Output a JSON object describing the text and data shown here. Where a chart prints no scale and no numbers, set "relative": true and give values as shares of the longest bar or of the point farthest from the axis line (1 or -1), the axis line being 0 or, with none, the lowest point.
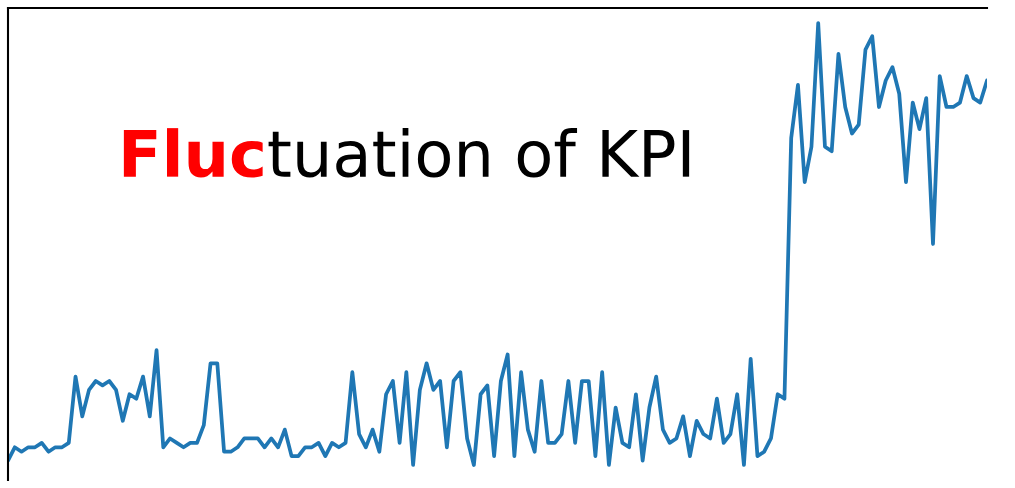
{
  "chart_data": {
    "type": "line",
    "title": "Fluctuation of KPI",
    "relative": true,
    "color": "#1f77b4",
    "categories": [
      null,
      null,
      null,
      null,
      null,
      null,
      null,
      null,
      null,
      null,
      null,
      null,
      null,
      null,
      null,
      null,
      null,
      null,
      null,
      null,
      null,
      null,
      null,
      null,
      null,
      null,
      null,
      null,
      null,
      null,
      null,
      null,
      null,
      null,
      null,
      null,
      null,
      null,
      null,
      null,
      null,
      null,
      null,
      null,
      null,
      null,
      null,
      null,
      null,
      null,
      null,
      null,
      null,
      null,
      null,
      null,
      null,
      null,
      null,
      null,
      null,
      null,
      null,
      null,
      null,
      null,
      null,
      null,
      null,
      null,
      null,
      null,
      null,
      null,
      null,
      null,
      null,
      null,
      null,
      null,
      null,
      null,
      null,
      null,
      null,
      null,
      null,
      null,
      null,
      null,
      null,
      null,
      null,
      null,
      null,
      null,
      null,
      null,
      null,
      null,
      null,
      null,
      null,
      null,
      null,
      null,
      null,
      null,
      null,
      null,
      null,
      null,
      null,
      null,
      null,
      null,
      null,
      null,
      null,
      null,
      null,
      null,
      null,
      null,
      null,
      null,
      null,
      null,
      null,
      null,
      null,
      null,
      null,
      null,
      null,
      null,
      null,
      null,
      null,
      null,
      null,
      null,
      null,
      null,
      null,
      null
    ],
    "values": [
      0.01,
      0.04,
      0.03,
      0.04,
      0.04,
      0.05,
      0.03,
      0.04,
      0.04,
      0.05,
      0.2,
      0.11,
      0.17,
      0.19,
      0.18,
      0.19,
      0.17,
      0.1,
      0.16,
      0.15,
      0.2,
      0.11,
      0.26,
      0.04,
      0.06,
      0.05,
      0.04,
      0.05,
      0.05,
      0.09,
      0.23,
      0.23,
      0.03,
      0.03,
      0.04,
      0.06,
      0.06,
      0.06,
      0.04,
      0.06,
      0.04,
      0.08,
      0.02,
      0.02,
      0.04,
      0.04,
      0.05,
      0.02,
      0.05,
      0.04,
      0.05,
      0.21,
      0.07,
      0.04,
      0.08,
      0.03,
      0.16,
      0.19,
      0.05,
      0.21,
      0.0,
      0.17,
      0.23,
      0.17,
      0.19,
      0.04,
      0.19,
      0.21,
      0.06,
      0.0,
      0.16,
      0.18,
      0.02,
      0.19,
      0.25,
      0.02,
      0.21,
      0.08,
      0.03,
      0.19,
      0.05,
      0.05,
      0.07,
      0.19,
      0.05,
      0.19,
      0.19,
      0.02,
      0.21,
      0.0,
      0.13,
      0.05,
      0.04,
      0.16,
      0.01,
      0.13,
      0.2,
      0.08,
      0.05,
      0.06,
      0.11,
      0.02,
      0.1,
      0.07,
      0.06,
      0.15,
      0.05,
      0.07,
      0.16,
      0.0,
      0.24,
      0.02,
      0.03,
      0.06,
      0.16,
      0.15,
      0.74,
      0.86,
      0.64,
      0.72,
      1,
      0.72,
      0.71,
      0.93,
      0.81,
      0.75,
      0.77,
      0.94,
      0.97,
      0.81,
      0.87,
      0.9,
      0.84,
      0.64,
      0.82,
      0.76,
      0.83,
      0.5,
      0.88,
      0.81,
      0.81,
      0.82,
      0.88,
      0.83,
      0.82,
      0.87
    ]
  }
}
